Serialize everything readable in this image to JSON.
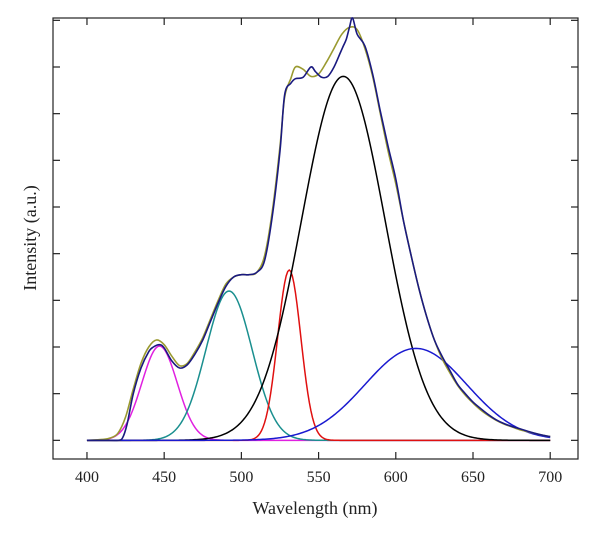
{
  "chart_data": {
    "type": "line",
    "title": "",
    "xlabel": "Wavelength (nm)",
    "ylabel": "Intensity (a.u.)",
    "xlim": [
      378,
      718
    ],
    "ylim": [
      -0.4,
      9.05
    ],
    "xticks": [
      400,
      450,
      500,
      550,
      600,
      650,
      700
    ],
    "yticks": [
      0,
      1,
      2,
      3,
      4,
      5,
      6,
      7,
      8,
      9
    ],
    "show_y_tick_labels": false,
    "grid": false,
    "legend": "none",
    "gaussian_components": [
      {
        "color": "#e020e0",
        "center": 447,
        "sigma": 11.5,
        "amplitude": 2.02
      },
      {
        "color": "#1a8f8f",
        "center": 492,
        "sigma": 15,
        "amplitude": 3.2
      },
      {
        "color": "#e01010",
        "center": 531,
        "sigma": 7.5,
        "amplitude": 3.65
      },
      {
        "color": "#000000",
        "center": 566,
        "sigma": 27,
        "amplitude": 7.8
      },
      {
        "color": "#1a1ad0",
        "center": 613,
        "sigma": 33,
        "amplitude": 1.97
      }
    ],
    "series": [
      {
        "color": "#1a1a80",
        "x": [
          400,
          415,
          420,
          423,
          426,
          430,
          435,
          440,
          443,
          447,
          450,
          455,
          460,
          465,
          470,
          475,
          480,
          485,
          490,
          495,
          500,
          505,
          510,
          515,
          520,
          525,
          528,
          532,
          535,
          540,
          545,
          548,
          552,
          556,
          560,
          564,
          566,
          568,
          570,
          572,
          575,
          580,
          585,
          590,
          595,
          600,
          605,
          610,
          615,
          620,
          625,
          630,
          635,
          640,
          645,
          650,
          655,
          660,
          665,
          670,
          675,
          680,
          685,
          690,
          695,
          700
        ],
        "y": [
          0,
          0,
          0,
          0.05,
          0.35,
          1.0,
          1.55,
          1.9,
          2.0,
          2.05,
          1.98,
          1.7,
          1.55,
          1.62,
          1.85,
          2.15,
          2.55,
          2.95,
          3.3,
          3.5,
          3.55,
          3.55,
          3.6,
          3.85,
          4.8,
          6.2,
          7.4,
          7.65,
          7.75,
          7.78,
          8.0,
          7.9,
          7.78,
          7.8,
          8.0,
          8.3,
          8.45,
          8.6,
          8.85,
          9.05,
          8.7,
          8.45,
          7.85,
          7.05,
          6.3,
          5.6,
          4.7,
          3.95,
          3.25,
          2.65,
          2.15,
          1.8,
          1.5,
          1.2,
          1.0,
          0.82,
          0.68,
          0.55,
          0.44,
          0.36,
          0.3,
          0.25,
          0.2,
          0.15,
          0.11,
          0.08
        ]
      },
      {
        "color": "#9a9a30",
        "x": [
          400,
          410,
          415,
          420,
          425,
          430,
          435,
          440,
          445,
          450,
          455,
          460,
          465,
          470,
          475,
          480,
          485,
          490,
          495,
          500,
          505,
          510,
          515,
          520,
          525,
          528,
          532,
          535,
          540,
          545,
          550,
          555,
          560,
          565,
          570,
          575,
          580,
          585,
          590,
          595,
          600,
          605,
          610,
          615,
          620,
          625,
          630,
          635,
          640,
          645,
          650,
          655,
          660,
          665,
          670,
          675,
          680,
          685,
          690,
          695,
          700
        ],
        "y": [
          0,
          0.02,
          0.05,
          0.15,
          0.5,
          1.1,
          1.65,
          2.0,
          2.15,
          2.05,
          1.8,
          1.6,
          1.65,
          1.9,
          2.2,
          2.6,
          3.0,
          3.35,
          3.5,
          3.55,
          3.55,
          3.6,
          3.95,
          4.9,
          6.3,
          7.35,
          7.75,
          8.0,
          7.95,
          7.8,
          7.85,
          8.1,
          8.4,
          8.7,
          8.85,
          8.8,
          8.4,
          7.8,
          7.0,
          6.2,
          5.5,
          4.7,
          3.95,
          3.25,
          2.65,
          2.15,
          1.75,
          1.45,
          1.18,
          0.97,
          0.8,
          0.65,
          0.53,
          0.43,
          0.35,
          0.29,
          0.23,
          0.19,
          0.15,
          0.11,
          0.08
        ]
      }
    ]
  }
}
